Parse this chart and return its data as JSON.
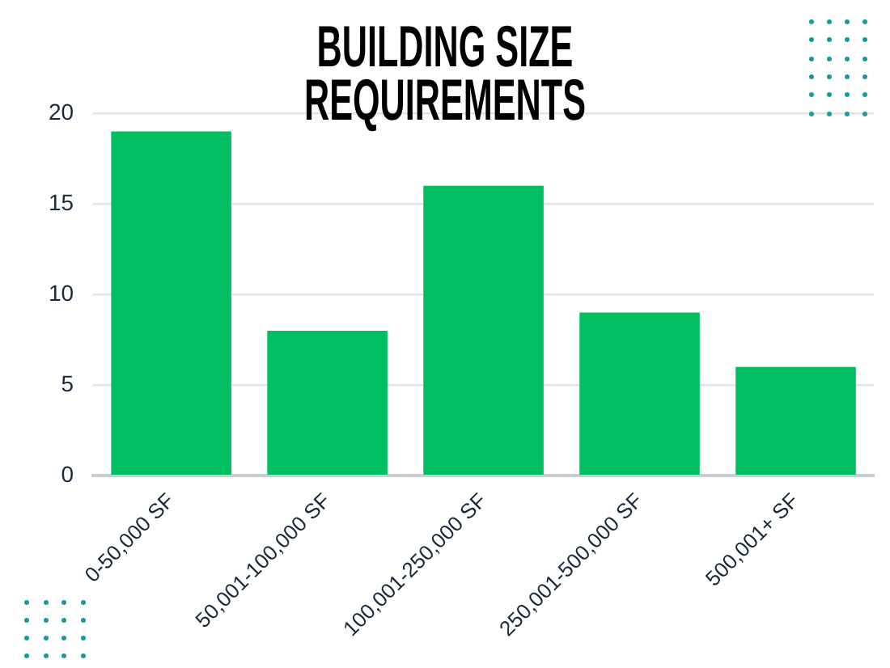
{
  "chart_data": {
    "type": "bar",
    "title": "BUILDING SIZE REQUIREMENTS",
    "categories": [
      "0-50,000 SF",
      "50,001-100,000 SF",
      "100,001-250,000 SF",
      "250,001-500,000 SF",
      "500,001+ SF"
    ],
    "values": [
      19,
      8,
      16,
      9,
      6
    ],
    "color": "#00bf63",
    "ylim": [
      0,
      20
    ],
    "yticks": [
      0,
      5,
      10,
      15,
      20
    ],
    "grid": "y"
  }
}
